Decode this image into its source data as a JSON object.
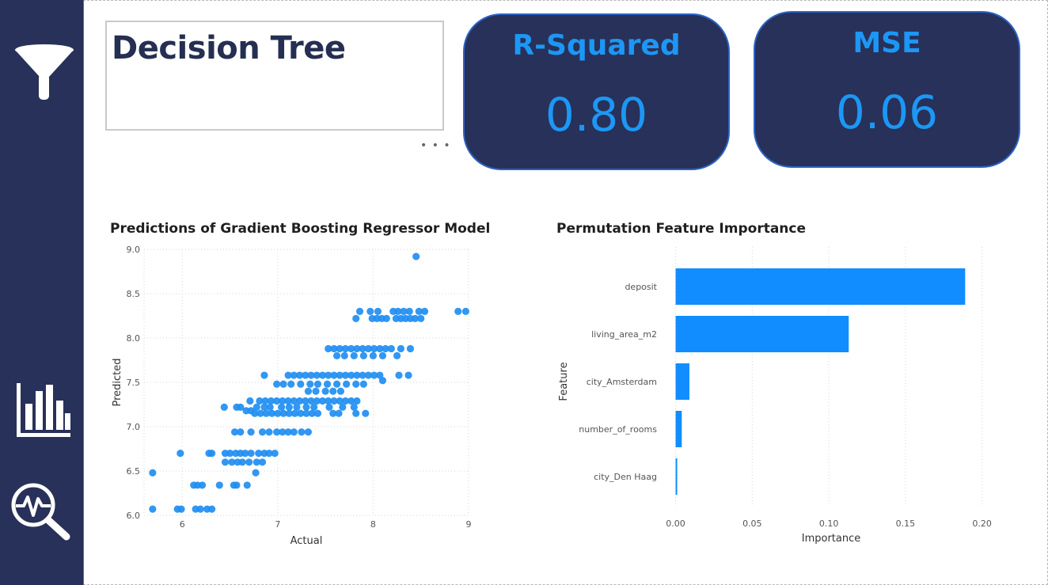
{
  "report": {
    "title": "Decision Tree",
    "more_options": "• • •"
  },
  "sidebar": {
    "items": [
      {
        "icon": "filter-icon"
      },
      {
        "icon": "bar-chart-icon"
      },
      {
        "icon": "search-analytics-icon"
      }
    ]
  },
  "kpis": {
    "r_squared": {
      "label": "R-Squared",
      "value": "0.80"
    },
    "mse": {
      "label": "MSE",
      "value": "0.06"
    }
  },
  "colors": {
    "sidebar": "#283159",
    "card": "#283159",
    "accent": "#1c97f5",
    "marker": "#1f8ef1",
    "bar": "#118dff"
  },
  "chart_data": [
    {
      "type": "scatter",
      "title": "Predictions of Gradient Boosting Regressor Model",
      "xlabel": "Actual",
      "ylabel": "Predicted",
      "xlim": [
        5.6,
        9.0
      ],
      "ylim": [
        6.0,
        9.0
      ],
      "xticks": [
        "6",
        "7",
        "8",
        "9"
      ],
      "yticks": [
        "6.0",
        "6.5",
        "7.0",
        "7.5",
        "8.0",
        "8.5",
        "9.0"
      ],
      "grid": true,
      "points": [
        [
          5.69,
          6.07
        ],
        [
          5.95,
          6.07
        ],
        [
          5.99,
          6.07
        ],
        [
          6.14,
          6.07
        ],
        [
          6.19,
          6.07
        ],
        [
          6.26,
          6.07
        ],
        [
          6.31,
          6.07
        ],
        [
          5.69,
          6.48
        ],
        [
          6.12,
          6.34
        ],
        [
          6.16,
          6.34
        ],
        [
          6.21,
          6.34
        ],
        [
          6.39,
          6.34
        ],
        [
          6.54,
          6.34
        ],
        [
          6.57,
          6.34
        ],
        [
          6.68,
          6.34
        ],
        [
          6.45,
          6.6
        ],
        [
          6.52,
          6.6
        ],
        [
          6.58,
          6.6
        ],
        [
          6.63,
          6.6
        ],
        [
          6.7,
          6.6
        ],
        [
          6.78,
          6.6
        ],
        [
          6.84,
          6.6
        ],
        [
          6.77,
          6.48
        ],
        [
          5.98,
          6.7
        ],
        [
          6.28,
          6.7
        ],
        [
          6.31,
          6.7
        ],
        [
          6.45,
          6.7
        ],
        [
          6.5,
          6.7
        ],
        [
          6.56,
          6.7
        ],
        [
          6.61,
          6.7
        ],
        [
          6.66,
          6.7
        ],
        [
          6.72,
          6.7
        ],
        [
          6.8,
          6.7
        ],
        [
          6.86,
          6.7
        ],
        [
          6.91,
          6.7
        ],
        [
          6.97,
          6.7
        ],
        [
          6.55,
          6.94
        ],
        [
          6.61,
          6.94
        ],
        [
          6.72,
          6.94
        ],
        [
          6.84,
          6.94
        ],
        [
          6.91,
          6.94
        ],
        [
          6.99,
          6.94
        ],
        [
          7.05,
          6.94
        ],
        [
          7.11,
          6.94
        ],
        [
          7.17,
          6.94
        ],
        [
          7.25,
          6.94
        ],
        [
          7.32,
          6.94
        ],
        [
          6.44,
          7.22
        ],
        [
          6.61,
          7.22
        ],
        [
          6.67,
          7.18
        ],
        [
          6.72,
          7.18
        ],
        [
          6.76,
          7.15
        ],
        [
          6.82,
          7.15
        ],
        [
          6.88,
          7.15
        ],
        [
          6.94,
          7.15
        ],
        [
          7.0,
          7.15
        ],
        [
          7.06,
          7.15
        ],
        [
          7.12,
          7.15
        ],
        [
          7.18,
          7.15
        ],
        [
          7.24,
          7.15
        ],
        [
          7.3,
          7.15
        ],
        [
          7.36,
          7.15
        ],
        [
          7.42,
          7.15
        ],
        [
          7.58,
          7.15
        ],
        [
          7.64,
          7.15
        ],
        [
          7.82,
          7.15
        ],
        [
          7.92,
          7.15
        ],
        [
          6.78,
          7.22
        ],
        [
          6.86,
          7.22
        ],
        [
          6.92,
          7.22
        ],
        [
          7.04,
          7.22
        ],
        [
          7.12,
          7.22
        ],
        [
          7.2,
          7.22
        ],
        [
          7.3,
          7.22
        ],
        [
          7.38,
          7.22
        ],
        [
          7.54,
          7.22
        ],
        [
          7.68,
          7.22
        ],
        [
          7.8,
          7.22
        ],
        [
          6.81,
          7.29
        ],
        [
          6.87,
          7.29
        ],
        [
          6.93,
          7.29
        ],
        [
          6.99,
          7.29
        ],
        [
          7.05,
          7.29
        ],
        [
          7.11,
          7.29
        ],
        [
          7.17,
          7.29
        ],
        [
          7.23,
          7.29
        ],
        [
          7.29,
          7.29
        ],
        [
          7.35,
          7.29
        ],
        [
          7.41,
          7.29
        ],
        [
          7.47,
          7.29
        ],
        [
          7.53,
          7.29
        ],
        [
          7.59,
          7.29
        ],
        [
          7.65,
          7.29
        ],
        [
          7.71,
          7.29
        ],
        [
          7.77,
          7.29
        ],
        [
          7.83,
          7.29
        ],
        [
          6.71,
          7.29
        ],
        [
          6.57,
          7.22
        ],
        [
          6.86,
          7.58
        ],
        [
          7.11,
          7.58
        ],
        [
          7.17,
          7.58
        ],
        [
          7.23,
          7.58
        ],
        [
          7.29,
          7.58
        ],
        [
          7.35,
          7.58
        ],
        [
          7.41,
          7.58
        ],
        [
          7.47,
          7.58
        ],
        [
          7.53,
          7.58
        ],
        [
          7.59,
          7.58
        ],
        [
          7.65,
          7.58
        ],
        [
          7.71,
          7.58
        ],
        [
          7.77,
          7.58
        ],
        [
          7.83,
          7.58
        ],
        [
          7.89,
          7.58
        ],
        [
          7.95,
          7.58
        ],
        [
          8.01,
          7.58
        ],
        [
          8.07,
          7.58
        ],
        [
          8.27,
          7.58
        ],
        [
          8.37,
          7.58
        ],
        [
          6.99,
          7.48
        ],
        [
          7.06,
          7.48
        ],
        [
          7.14,
          7.48
        ],
        [
          7.24,
          7.48
        ],
        [
          7.34,
          7.48
        ],
        [
          7.42,
          7.48
        ],
        [
          7.52,
          7.48
        ],
        [
          7.62,
          7.48
        ],
        [
          7.72,
          7.48
        ],
        [
          7.82,
          7.48
        ],
        [
          7.9,
          7.48
        ],
        [
          8.1,
          7.52
        ],
        [
          7.32,
          7.4
        ],
        [
          7.4,
          7.4
        ],
        [
          7.5,
          7.4
        ],
        [
          7.58,
          7.4
        ],
        [
          7.66,
          7.4
        ],
        [
          7.53,
          7.88
        ],
        [
          7.59,
          7.88
        ],
        [
          7.65,
          7.88
        ],
        [
          7.71,
          7.88
        ],
        [
          7.77,
          7.88
        ],
        [
          7.83,
          7.88
        ],
        [
          7.89,
          7.88
        ],
        [
          7.95,
          7.88
        ],
        [
          8.01,
          7.88
        ],
        [
          8.07,
          7.88
        ],
        [
          8.13,
          7.88
        ],
        [
          8.19,
          7.88
        ],
        [
          8.29,
          7.88
        ],
        [
          8.39,
          7.88
        ],
        [
          7.62,
          7.8
        ],
        [
          7.7,
          7.8
        ],
        [
          7.8,
          7.8
        ],
        [
          7.9,
          7.8
        ],
        [
          8.0,
          7.8
        ],
        [
          8.1,
          7.8
        ],
        [
          8.25,
          7.8
        ],
        [
          7.82,
          8.22
        ],
        [
          7.99,
          8.22
        ],
        [
          8.04,
          8.22
        ],
        [
          8.09,
          8.22
        ],
        [
          8.14,
          8.22
        ],
        [
          8.24,
          8.22
        ],
        [
          8.29,
          8.22
        ],
        [
          8.34,
          8.22
        ],
        [
          8.39,
          8.22
        ],
        [
          8.44,
          8.22
        ],
        [
          8.5,
          8.22
        ],
        [
          7.86,
          8.3
        ],
        [
          7.97,
          8.3
        ],
        [
          8.05,
          8.3
        ],
        [
          8.21,
          8.3
        ],
        [
          8.26,
          8.3
        ],
        [
          8.32,
          8.3
        ],
        [
          8.38,
          8.3
        ],
        [
          8.48,
          8.3
        ],
        [
          8.54,
          8.3
        ],
        [
          8.89,
          8.3
        ],
        [
          8.97,
          8.3
        ],
        [
          8.45,
          8.92
        ]
      ]
    },
    {
      "type": "bar",
      "orientation": "horizontal",
      "title": "Permutation Feature Importance",
      "xlabel": "Importance",
      "ylabel": "Feature",
      "categories": [
        "deposit",
        "living_area_m2",
        "city_Amsterdam",
        "number_of_rooms",
        "city_Den Haag"
      ],
      "values": [
        0.189,
        0.113,
        0.009,
        0.004,
        0.001
      ],
      "xlim": [
        -0.007,
        0.21
      ],
      "xticks": [
        "0.00",
        "0.05",
        "0.10",
        "0.15",
        "0.20"
      ],
      "grid": true
    }
  ]
}
